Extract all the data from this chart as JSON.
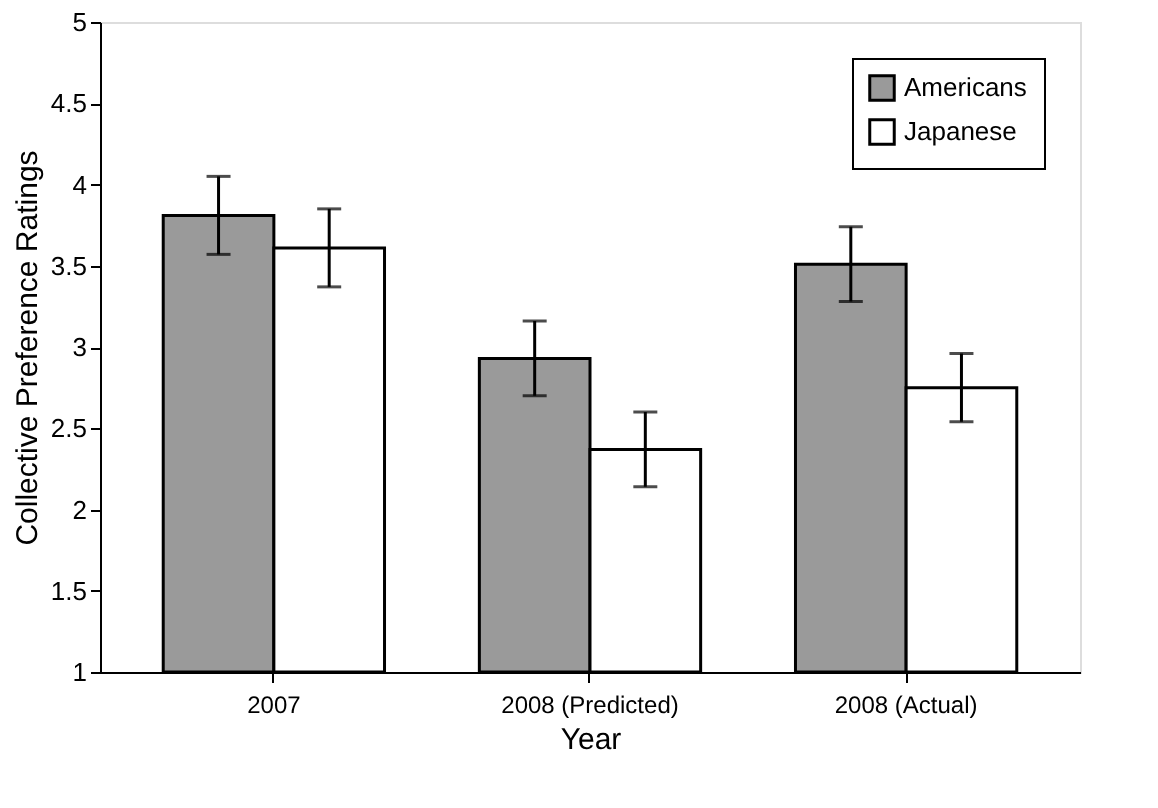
{
  "chart_data": {
    "type": "bar",
    "xlabel": "Year",
    "ylabel": "Collective Preference Ratings",
    "categories": [
      "2007",
      "2008 (Predicted)",
      "2008 (Actual)"
    ],
    "series": [
      {
        "name": "Americans",
        "color": "#9a9a9a",
        "values": [
          3.81,
          2.93,
          3.51
        ],
        "errors": [
          0.24,
          0.23,
          0.23
        ]
      },
      {
        "name": "Japanese",
        "color": "#ffffff",
        "values": [
          3.61,
          2.37,
          2.75
        ],
        "errors": [
          0.24,
          0.23,
          0.21
        ]
      }
    ],
    "ylim": [
      1,
      5
    ],
    "yticks": [
      1,
      1.5,
      2,
      2.5,
      3,
      3.5,
      4,
      4.5,
      5
    ],
    "grid": false,
    "legend": "top right"
  }
}
